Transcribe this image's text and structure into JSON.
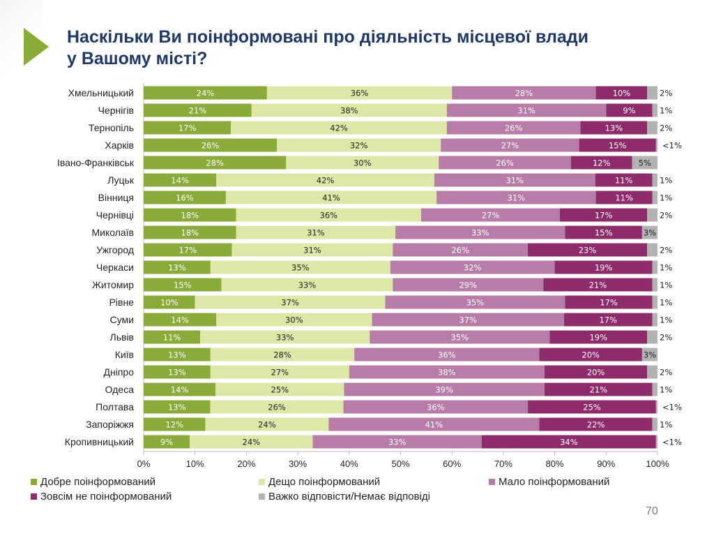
{
  "title_line1": "Наскільки Ви поінформовані про діяльність місцевої влади",
  "title_line2": "у Вашому місті?",
  "page_number": "70",
  "chart_data": {
    "type": "bar",
    "orientation": "horizontal",
    "stacked": "100%",
    "categories": [
      "Хмельницький",
      "Чернігів",
      "Тернопіль",
      "Харків",
      "Івано-Франківськ",
      "Луцьк",
      "Вінниця",
      "Чернівці",
      "Миколаїв",
      "Ужгород",
      "Черкаси",
      "Житомир",
      "Рівне",
      "Суми",
      "Львів",
      "Київ",
      "Дніпро",
      "Одеса",
      "Полтава",
      "Запоріжжя",
      "Кропивницький"
    ],
    "xlim": [
      0,
      100
    ],
    "x_ticks": [
      "0%",
      "10%",
      "20%",
      "30%",
      "40%",
      "50%",
      "60%",
      "70%",
      "80%",
      "90%",
      "100%"
    ],
    "legend_position": "bottom",
    "grid": false,
    "series": [
      {
        "name": "Добре поінформований",
        "color": "#8aaa3a",
        "values": [
          24,
          21,
          17,
          26,
          28,
          14,
          16,
          18,
          18,
          17,
          13,
          15,
          10,
          14,
          11,
          13,
          13,
          14,
          13,
          12,
          9
        ]
      },
      {
        "name": "Дещо поінформований",
        "color": "#dde8a8",
        "values": [
          36,
          38,
          42,
          32,
          30,
          42,
          41,
          36,
          31,
          31,
          35,
          33,
          37,
          30,
          33,
          28,
          27,
          25,
          26,
          24,
          24
        ]
      },
      {
        "name": "Мало поінформований",
        "color": "#b87ca9",
        "values": [
          28,
          31,
          26,
          27,
          26,
          31,
          31,
          27,
          33,
          26,
          32,
          29,
          35,
          37,
          35,
          36,
          38,
          39,
          36,
          41,
          33
        ]
      },
      {
        "name": "Зовсім не поінформований",
        "color": "#8e2c6b",
        "values": [
          10,
          9,
          13,
          15,
          12,
          11,
          11,
          17,
          15,
          23,
          19,
          21,
          17,
          17,
          19,
          20,
          20,
          21,
          25,
          22,
          34
        ]
      },
      {
        "name": "Важко відповісти/Немає відповіді",
        "color": "#b3b3b3",
        "values": [
          2,
          1,
          2,
          0.3,
          5,
          1,
          1,
          2,
          3,
          2,
          1,
          1,
          1,
          1,
          2,
          3,
          2,
          1,
          0.3,
          1,
          0.3
        ],
        "labels": [
          "2%",
          "1%",
          "2%",
          "<1%",
          "5%",
          "1%",
          "1%",
          "2%",
          "3%",
          "2%",
          "1%",
          "1%",
          "1%",
          "1%",
          "2%",
          "3%",
          "2%",
          "1%",
          "<1%",
          "1%",
          "<1%"
        ]
      }
    ]
  }
}
